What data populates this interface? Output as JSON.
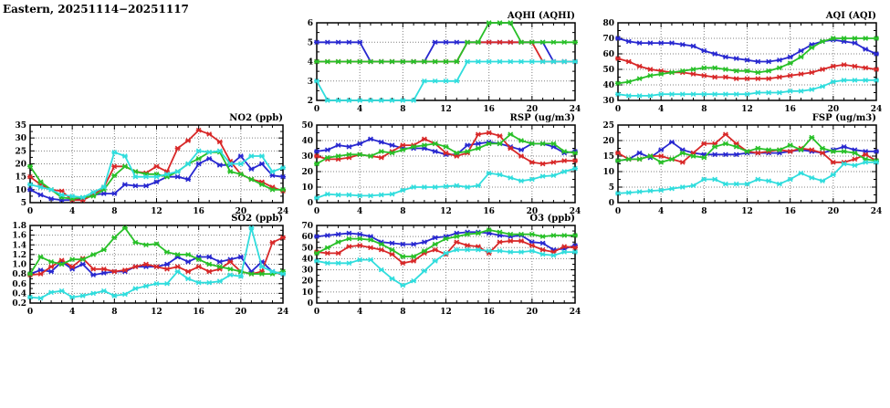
{
  "header": {
    "title": "Eastern, 20251114−20251117"
  },
  "palette": {
    "blue": "#2828d0",
    "red": "#d82828",
    "green": "#28c028",
    "cyan": "#30dddd",
    "grid": "#808080",
    "axis": "#000000"
  },
  "chart_data": [
    {
      "id": "aqhi",
      "type": "line",
      "title": "AQHI (AQHI)",
      "xlim": [
        0,
        24
      ],
      "x_ticks": [
        0,
        4,
        8,
        12,
        16,
        20,
        24
      ],
      "ylim": [
        2,
        6
      ],
      "y_ticks": [
        2,
        3,
        4,
        5,
        6
      ],
      "y_minor": 0.5,
      "y_decimals": 0,
      "grid": true,
      "legend": "none",
      "series": [
        {
          "name": "blue",
          "color": "#2828d0",
          "values": [
            5,
            5,
            5,
            5,
            5,
            4,
            4,
            4,
            4,
            4,
            4,
            5,
            5,
            5,
            5,
            5,
            5,
            5,
            5,
            5,
            5,
            5,
            4,
            4,
            4
          ]
        },
        {
          "name": "red",
          "color": "#d82828",
          "values": [
            4,
            4,
            4,
            4,
            4,
            4,
            4,
            4,
            4,
            4,
            4,
            4,
            4,
            4,
            5,
            5,
            5,
            5,
            5,
            5,
            5,
            4,
            4,
            4,
            4
          ]
        },
        {
          "name": "green",
          "color": "#28c028",
          "values": [
            4,
            4,
            4,
            4,
            4,
            4,
            4,
            4,
            4,
            4,
            4,
            4,
            4,
            4,
            5,
            5,
            6,
            6,
            6,
            5,
            5,
            5,
            5,
            5,
            5
          ]
        },
        {
          "name": "cyan",
          "color": "#30dddd",
          "values": [
            3,
            2,
            2,
            2,
            2,
            2,
            2,
            2,
            2,
            2,
            3,
            3,
            3,
            3,
            4,
            4,
            4,
            4,
            4,
            4,
            4,
            4,
            4,
            4,
            4
          ]
        }
      ]
    },
    {
      "id": "aqi",
      "type": "line",
      "title": "AQI (AQI)",
      "xlim": [
        0,
        24
      ],
      "x_ticks": [
        0,
        4,
        8,
        12,
        16,
        20,
        24
      ],
      "ylim": [
        30,
        80
      ],
      "y_ticks": [
        30,
        40,
        50,
        60,
        70,
        80
      ],
      "y_minor": 5,
      "y_decimals": 0,
      "grid": true,
      "legend": "none",
      "series": [
        {
          "name": "blue",
          "color": "#2828d0",
          "values": [
            70,
            68,
            67,
            67,
            67,
            67,
            66,
            65,
            62,
            60,
            58,
            57,
            56,
            55,
            55,
            56,
            58,
            62,
            66,
            68,
            69,
            68,
            67,
            63,
            60
          ]
        },
        {
          "name": "red",
          "color": "#d82828",
          "values": [
            57,
            55,
            52,
            50,
            49,
            48,
            48,
            47,
            46,
            45,
            45,
            44,
            44,
            44,
            44,
            45,
            46,
            47,
            48,
            50,
            52,
            53,
            52,
            51,
            50
          ]
        },
        {
          "name": "green",
          "color": "#28c028",
          "values": [
            41,
            42,
            44,
            46,
            47,
            48,
            49,
            50,
            51,
            51,
            50,
            49,
            49,
            48,
            49,
            51,
            54,
            58,
            64,
            68,
            70,
            70,
            70,
            70,
            70
          ]
        },
        {
          "name": "cyan",
          "color": "#30dddd",
          "values": [
            34,
            33,
            33,
            33,
            34,
            34,
            34,
            34,
            34,
            34,
            34,
            34,
            34,
            35,
            35,
            35,
            36,
            36,
            37,
            39,
            42,
            43,
            43,
            43,
            43
          ]
        }
      ]
    },
    {
      "id": "no2",
      "type": "line",
      "title": "NO2 (ppb)",
      "xlim": [
        0,
        24
      ],
      "x_ticks": [
        0,
        4,
        8,
        12,
        16,
        20,
        24
      ],
      "ylim": [
        5,
        35
      ],
      "y_ticks": [
        5,
        10,
        15,
        20,
        25,
        30,
        35
      ],
      "y_minor": 2.5,
      "y_decimals": 0,
      "grid": true,
      "legend": "none",
      "series": [
        {
          "name": "blue",
          "color": "#2828d0",
          "values": [
            10,
            8,
            6.5,
            6,
            6,
            6.5,
            8,
            8.5,
            8.5,
            12,
            11.5,
            11.5,
            13,
            15,
            15,
            14,
            20,
            22,
            19.5,
            19.5,
            23,
            18,
            20,
            15.5,
            15
          ]
        },
        {
          "name": "red",
          "color": "#d82828",
          "values": [
            15,
            12,
            10,
            9.5,
            6,
            6,
            8,
            11,
            19,
            19,
            17,
            16.5,
            19,
            17,
            26,
            29,
            33,
            31.5,
            28.5,
            21,
            16,
            14,
            13,
            11,
            9.5
          ]
        },
        {
          "name": "green",
          "color": "#28c028",
          "values": [
            19,
            13,
            10,
            7,
            6.5,
            7,
            7.5,
            10,
            15.5,
            19,
            17,
            16,
            16,
            15,
            17,
            20,
            22,
            24.5,
            24.5,
            17,
            16,
            14,
            12,
            10,
            10
          ]
        },
        {
          "name": "cyan",
          "color": "#30dddd",
          "values": [
            12,
            11,
            10,
            8,
            7.5,
            7,
            9,
            11,
            24.5,
            23,
            15,
            15,
            15,
            16,
            17,
            20,
            25,
            24.5,
            25,
            20,
            20,
            23,
            23,
            17,
            18.5
          ]
        }
      ]
    },
    {
      "id": "rsp",
      "type": "line",
      "title": "RSP (ug/m3)",
      "xlim": [
        0,
        24
      ],
      "x_ticks": [
        0,
        4,
        8,
        12,
        16,
        20,
        24
      ],
      "ylim": [
        0,
        50
      ],
      "y_ticks": [
        0,
        10,
        20,
        30,
        40,
        50
      ],
      "y_minor": 5,
      "y_decimals": 0,
      "grid": true,
      "legend": "none",
      "series": [
        {
          "name": "blue",
          "color": "#2828d0",
          "values": [
            33,
            34,
            37,
            36,
            38,
            41,
            39,
            37,
            35,
            35,
            35,
            33,
            31,
            31,
            37,
            38,
            39,
            38,
            36,
            34,
            38,
            38,
            36,
            32,
            33
          ]
        },
        {
          "name": "red",
          "color": "#d82828",
          "values": [
            30,
            28,
            28,
            29,
            31,
            30,
            29,
            33,
            37,
            37,
            41,
            38,
            32,
            30,
            32,
            44,
            45,
            43,
            35,
            30,
            26,
            25,
            26,
            27,
            27
          ]
        },
        {
          "name": "green",
          "color": "#28c028",
          "values": [
            25,
            29,
            30,
            31,
            31,
            30,
            33,
            32,
            34,
            36,
            37,
            38,
            36,
            32,
            33,
            35,
            38,
            38,
            44,
            40,
            38,
            38,
            38,
            33,
            32
          ]
        },
        {
          "name": "cyan",
          "color": "#30dddd",
          "values": [
            3,
            5.5,
            5,
            5,
            4.5,
            4.5,
            5,
            5.5,
            8,
            10,
            10,
            10,
            10.5,
            11,
            10,
            11,
            19,
            18,
            16,
            14,
            15,
            17,
            17.5,
            20,
            22
          ]
        }
      ]
    },
    {
      "id": "fsp",
      "type": "line",
      "title": "FSP (ug/m3)",
      "xlim": [
        0,
        24
      ],
      "x_ticks": [
        0,
        4,
        8,
        12,
        16,
        20,
        24
      ],
      "ylim": [
        0,
        25
      ],
      "y_ticks": [
        0,
        5,
        10,
        15,
        20,
        25
      ],
      "y_minor": 2.5,
      "y_decimals": 0,
      "grid": true,
      "legend": "none",
      "series": [
        {
          "name": "blue",
          "color": "#2828d0",
          "values": [
            13.5,
            14,
            16,
            14.5,
            17,
            19.5,
            17,
            16,
            15.5,
            15.5,
            15.5,
            15.5,
            16,
            16,
            16,
            16,
            16.5,
            17,
            16.5,
            16,
            17,
            18,
            17,
            16.5,
            16.5
          ]
        },
        {
          "name": "red",
          "color": "#d82828",
          "values": [
            16,
            14,
            14,
            15,
            15,
            14,
            13,
            16,
            19,
            19,
            22,
            19,
            16.5,
            16,
            16.5,
            17,
            16.5,
            17.5,
            17,
            16,
            13,
            13,
            14,
            15.5,
            13.5
          ]
        },
        {
          "name": "green",
          "color": "#28c028",
          "values": [
            13.5,
            14,
            14,
            15,
            13,
            14,
            16,
            15,
            14.5,
            18,
            19,
            18,
            16.5,
            17.5,
            17,
            17,
            18.5,
            17,
            21,
            17.5,
            16.5,
            16.5,
            16,
            14,
            13.5
          ]
        },
        {
          "name": "cyan",
          "color": "#30dddd",
          "values": [
            3,
            3.2,
            3.5,
            3.8,
            4,
            4.5,
            5,
            5.5,
            7.5,
            7.5,
            6,
            6,
            6,
            7.5,
            7,
            6,
            7.5,
            9.5,
            8,
            7,
            9,
            12.5,
            12,
            13,
            13
          ]
        }
      ]
    },
    {
      "id": "so2",
      "type": "line",
      "title": "SO2 (ppb)",
      "xlim": [
        0,
        24
      ],
      "x_ticks": [
        0,
        4,
        8,
        12,
        16,
        20,
        24
      ],
      "ylim": [
        0.2,
        1.8
      ],
      "y_ticks": [
        0.2,
        0.4,
        0.6,
        0.8,
        1.0,
        1.2,
        1.4,
        1.6,
        1.8
      ],
      "y_minor": 0.1,
      "y_decimals": 1,
      "grid": true,
      "legend": "none",
      "series": [
        {
          "name": "blue",
          "color": "#2828d0",
          "values": [
            0.8,
            0.88,
            0.85,
            1.05,
            0.9,
            1.0,
            0.78,
            0.82,
            0.85,
            0.85,
            0.95,
            0.95,
            0.95,
            1.0,
            1.15,
            1.05,
            1.15,
            1.15,
            1.05,
            1.1,
            1.15,
            0.85,
            1.05,
            0.85,
            0.8
          ]
        },
        {
          "name": "red",
          "color": "#d82828",
          "values": [
            0.78,
            0.8,
            0.95,
            1.08,
            0.95,
            1.12,
            0.9,
            0.9,
            0.85,
            0.88,
            0.95,
            1.0,
            0.95,
            0.9,
            0.95,
            0.85,
            0.95,
            0.85,
            0.9,
            1.05,
            0.85,
            0.8,
            0.85,
            1.45,
            1.55
          ]
        },
        {
          "name": "green",
          "color": "#28c028",
          "values": [
            0.8,
            1.15,
            1.05,
            1.0,
            1.1,
            1.1,
            1.2,
            1.3,
            1.55,
            1.75,
            1.45,
            1.4,
            1.42,
            1.25,
            1.2,
            1.2,
            1.1,
            1.0,
            0.95,
            0.9,
            0.85,
            0.8,
            0.8,
            0.8,
            0.85
          ]
        },
        {
          "name": "cyan",
          "color": "#30dddd",
          "values": [
            0.32,
            0.3,
            0.42,
            0.45,
            0.32,
            0.35,
            0.4,
            0.45,
            0.35,
            0.38,
            0.5,
            0.55,
            0.6,
            0.6,
            0.85,
            0.7,
            0.62,
            0.62,
            0.65,
            0.78,
            0.75,
            1.75,
            0.95,
            0.85,
            0.8
          ]
        }
      ]
    },
    {
      "id": "o3",
      "type": "line",
      "title": "O3 (ppb)",
      "xlim": [
        0,
        24
      ],
      "x_ticks": [
        0,
        4,
        8,
        12,
        16,
        20,
        24
      ],
      "ylim": [
        0,
        70
      ],
      "y_ticks": [
        0,
        10,
        20,
        30,
        40,
        50,
        60,
        70
      ],
      "y_minor": 5,
      "y_decimals": 0,
      "grid": true,
      "legend": "none",
      "series": [
        {
          "name": "blue",
          "color": "#2828d0",
          "values": [
            60,
            61,
            62,
            63,
            62,
            60,
            55,
            54,
            53,
            53,
            55,
            59,
            60,
            63,
            64,
            64,
            63,
            61,
            60,
            61,
            55,
            54,
            48,
            49,
            52
          ]
        },
        {
          "name": "red",
          "color": "#d82828",
          "values": [
            46,
            45,
            45,
            51,
            52,
            50,
            48,
            44,
            36,
            38,
            45,
            48,
            44,
            55,
            52,
            51,
            45,
            55,
            56,
            56,
            52,
            48,
            46,
            51,
            50
          ]
        },
        {
          "name": "green",
          "color": "#28c028",
          "values": [
            45,
            50,
            55,
            58,
            58,
            57,
            53,
            48,
            42,
            42,
            47,
            53,
            58,
            60,
            62,
            63,
            66,
            64,
            62,
            62,
            62,
            60,
            61,
            61,
            61
          ]
        },
        {
          "name": "cyan",
          "color": "#30dddd",
          "values": [
            38,
            36,
            36,
            36,
            39,
            39,
            30,
            22,
            16,
            20,
            29,
            38,
            45,
            48,
            48,
            48,
            47,
            47,
            46,
            46,
            47,
            44,
            43,
            46,
            46
          ]
        }
      ]
    }
  ]
}
